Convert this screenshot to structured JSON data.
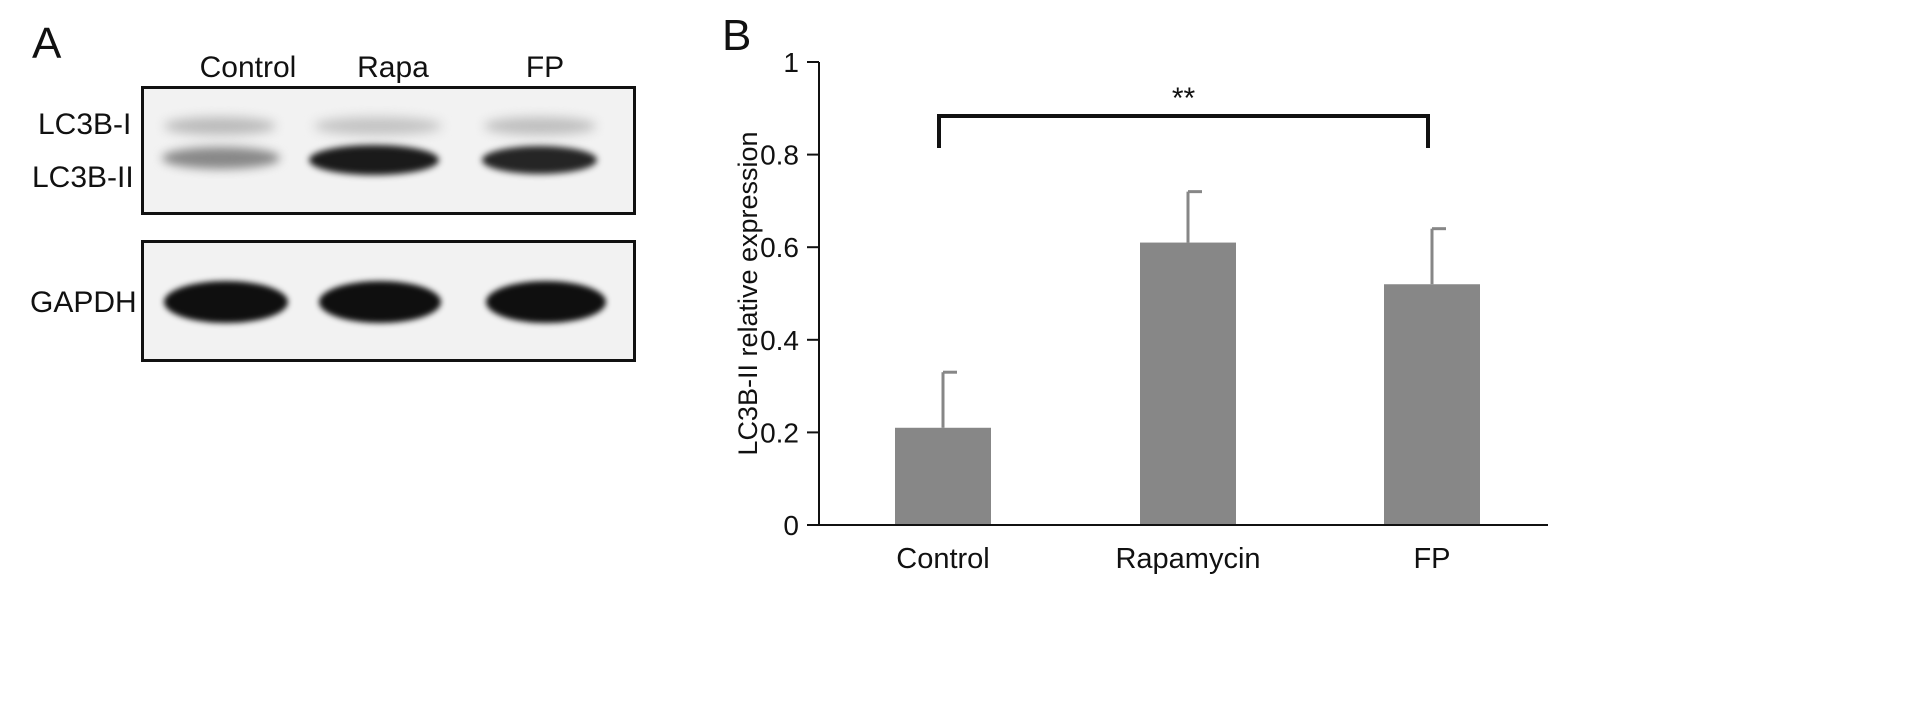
{
  "panel_a": {
    "letter": "A",
    "lanes": [
      "Control",
      "Rapa",
      "FP"
    ],
    "blot_top": {
      "band_labels": [
        "LC3B-I",
        "LC3B-II"
      ],
      "intensity": {
        "LC3B-I": [
          0.22,
          0.18,
          0.2
        ],
        "LC3B-II": [
          0.45,
          0.95,
          0.9
        ]
      }
    },
    "blot_bottom": {
      "band_labels": [
        "GAPDH"
      ],
      "intensity": {
        "GAPDH": [
          1.0,
          1.0,
          1.0
        ]
      }
    }
  },
  "panel_b": {
    "letter": "B",
    "significance_label": "**"
  },
  "chart_data": {
    "type": "bar",
    "categories": [
      "Control",
      "Rapamycin",
      "FP"
    ],
    "values": [
      0.21,
      0.61,
      0.52
    ],
    "error": [
      0.12,
      0.11,
      0.12
    ],
    "title": "",
    "xlabel": "",
    "ylabel": "LC3B-II relative expression",
    "ylim": [
      0,
      1
    ],
    "yticks": [
      "0",
      "0.2",
      "0.4",
      "0.6",
      "0.8",
      "1"
    ],
    "bar_color": "#878787",
    "significance": {
      "from": "Control",
      "to": "FP",
      "label": "**"
    },
    "grid": false,
    "legend": "none"
  }
}
